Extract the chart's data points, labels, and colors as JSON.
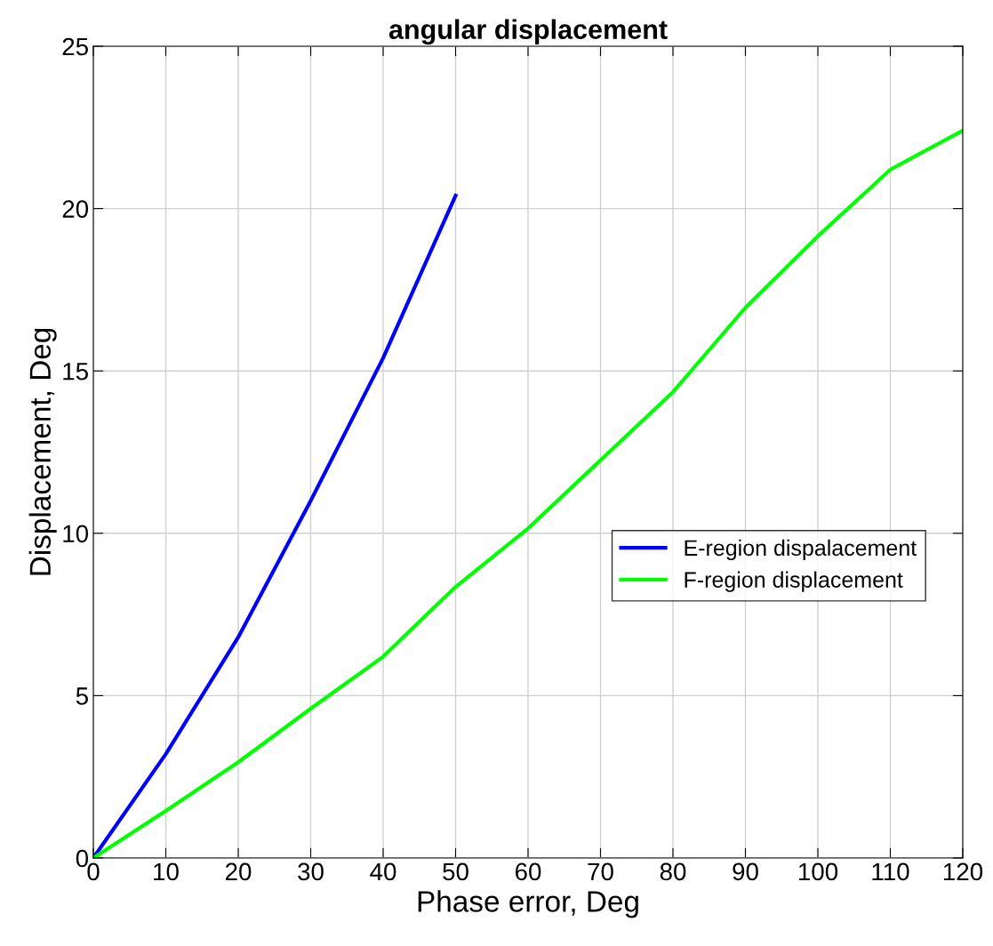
{
  "chart_data": {
    "type": "line",
    "title": "angular displacement",
    "xlabel": "Phase error, Deg",
    "ylabel": "Displacement, Deg",
    "x": [
      0,
      10,
      20,
      30,
      40,
      50,
      60,
      70,
      80,
      90,
      100,
      110,
      120
    ],
    "series": [
      {
        "name": "E-region dispalacement",
        "color": "#0000ff",
        "x": [
          0,
          10,
          20,
          30,
          40,
          50
        ],
        "values": [
          0,
          3.2,
          6.8,
          11.0,
          15.4,
          20.4
        ]
      },
      {
        "name": "F-region displacement",
        "color": "#00ff00",
        "values": [
          0,
          1.45,
          2.95,
          4.6,
          6.2,
          8.35,
          10.15,
          12.25,
          14.35,
          16.95,
          19.15,
          21.2,
          22.4
        ]
      }
    ],
    "xlim": [
      0,
      120
    ],
    "xticks": [
      0,
      10,
      20,
      30,
      40,
      50,
      60,
      70,
      80,
      90,
      100,
      110,
      120
    ],
    "ylim": [
      0,
      25
    ],
    "yticks": [
      0,
      5,
      10,
      15,
      20,
      25
    ],
    "grid": true,
    "legend": "right",
    "marker": "none",
    "line_style": "solid"
  }
}
